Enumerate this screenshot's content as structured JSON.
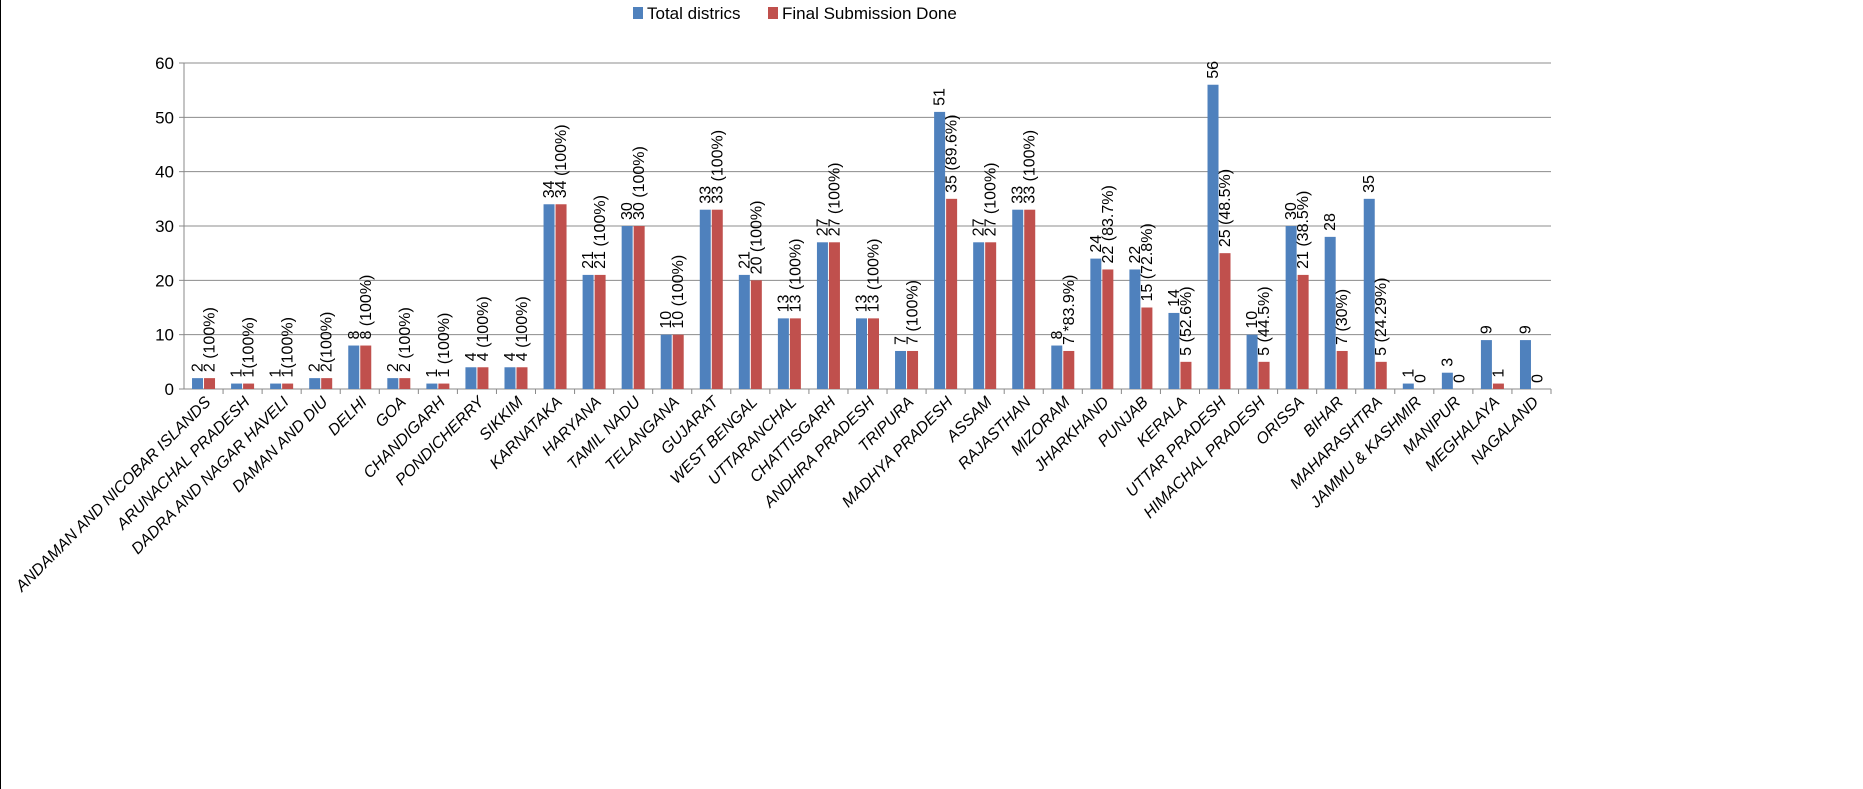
{
  "chart_data": {
    "type": "bar",
    "title": "",
    "xlabel": "",
    "ylabel": "",
    "ylim": [
      0,
      60
    ],
    "yticks": [
      "0",
      "10",
      "20",
      "30",
      "40",
      "50",
      "60"
    ],
    "grid": true,
    "legend_position": "top-center",
    "categories": [
      "ANDAMAN AND NICOBAR ISLANDS",
      "ARUNACHAL PRADESH",
      "DADRA AND NAGAR HAVELI",
      "DAMAN AND DIU",
      "DELHI",
      "GOA",
      "CHANDIGARH",
      "PONDICHERRY",
      "SIKKIM",
      "KARNATAKA",
      "HARYANA",
      "TAMIL NADU",
      "TELANGANA",
      "GUJARAT",
      "WEST BENGAL",
      "UTTARANCHAL",
      "CHATTISGARH",
      "ANDHRA PRADESH",
      "TRIPURA",
      "MADHYA PRADESH",
      "ASSAM",
      "RAJASTHAN",
      "MIZORAM",
      "JHARKHAND",
      "PUNJAB",
      "KERALA",
      "UTTAR PRADESH",
      "HIMACHAL PRADESH",
      "ORISSA",
      "BIHAR",
      "MAHARASHTRA",
      "JAMMU & KASHMIR",
      "MANIPUR",
      "MEGHALAYA",
      "NAGALAND"
    ],
    "series": [
      {
        "name": "Total districs",
        "color": "#4f81bd",
        "values": [
          2,
          1,
          1,
          2,
          8,
          2,
          1,
          4,
          4,
          34,
          21,
          30,
          10,
          33,
          21,
          13,
          27,
          13,
          7,
          51,
          27,
          33,
          8,
          24,
          22,
          14,
          56,
          10,
          30,
          28,
          35,
          1,
          3,
          9,
          9
        ],
        "labels": [
          "2",
          "1",
          "1",
          "2",
          "8",
          "2",
          "1",
          "4",
          "4",
          "34",
          "21",
          "30",
          "10",
          "33",
          "21",
          "13",
          "27",
          "13",
          "7",
          "51",
          "27",
          "33",
          "8",
          "24",
          "22",
          "14",
          "56",
          "10",
          "30",
          "28",
          "35",
          "1",
          "3",
          "9",
          "9"
        ]
      },
      {
        "name": "Final Submission Done",
        "color": "#c0504d",
        "values": [
          2,
          1,
          1,
          2,
          8,
          2,
          1,
          4,
          4,
          34,
          21,
          30,
          10,
          33,
          20,
          13,
          27,
          13,
          7,
          35,
          27,
          33,
          7,
          22,
          15,
          5,
          25,
          5,
          21,
          7,
          5,
          0,
          0,
          1,
          0
        ],
        "labels": [
          "2 (100%)",
          "1(100%)",
          "1(100%)",
          "2(100%)",
          "8 (100%)",
          "2 (100%)",
          "1 (100%)",
          "4 (100%)",
          "4 (100%)",
          "34 (100%)",
          "21 (100%)",
          "30 (100%)",
          "10 (100%)",
          "33 (100%)",
          "20 (100%)",
          "13 (100%)",
          "27 (100%)",
          "13 (100%)",
          "7 (100%)",
          "35 (89.6%)",
          "27 (100%)",
          "33 (100%)",
          "7 *83.9%)",
          "22 (83.7%)",
          "15 (72.8%)",
          "5 (52.6%)",
          "25 (48.5%)",
          "5 (44.5%)",
          "21 (38.5%)",
          "7 (30%)",
          "5 (24.29%)",
          "0",
          "0",
          "1",
          "0"
        ]
      }
    ]
  }
}
